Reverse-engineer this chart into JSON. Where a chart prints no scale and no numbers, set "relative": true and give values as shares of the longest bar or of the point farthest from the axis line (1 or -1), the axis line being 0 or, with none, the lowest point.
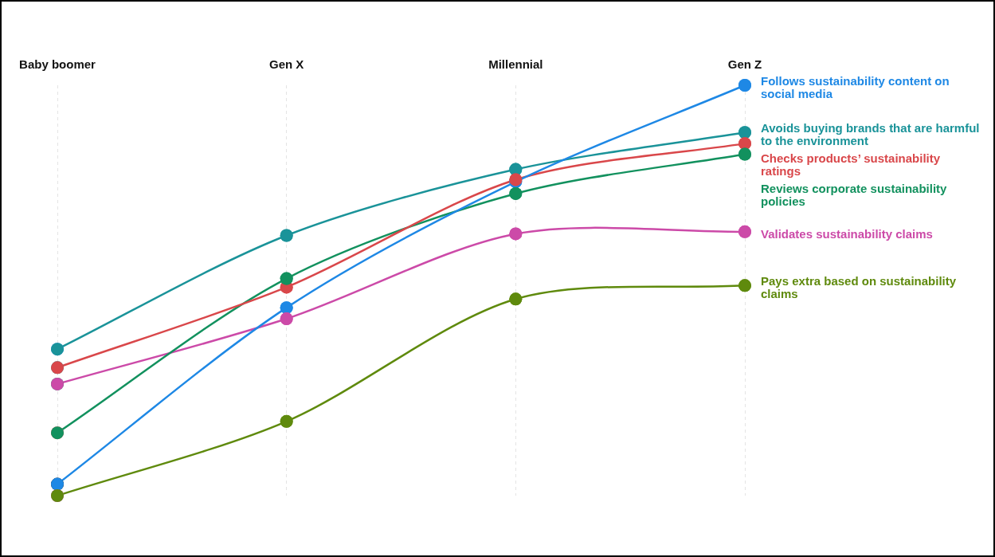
{
  "chart_data": {
    "type": "line",
    "relative": true,
    "categories": [
      "Baby boomer",
      "Gen X",
      "Millennial",
      "Gen Z"
    ],
    "series": [
      {
        "name": "Follows sustainability content on social media",
        "color": "#1e88e5",
        "values": [
          0.028,
          0.458,
          0.765,
          1
        ]
      },
      {
        "name": "Avoids buying brands that are harmful to the environment",
        "color": "#1a9399",
        "values": [
          0.357,
          0.634,
          0.795,
          0.885
        ]
      },
      {
        "name": "Checks products’ sustainability ratings",
        "color": "#d9474a",
        "values": [
          0.312,
          0.508,
          0.77,
          0.858
        ]
      },
      {
        "name": "Reviews corporate sustainability policies",
        "color": "#12915e",
        "values": [
          0.153,
          0.529,
          0.736,
          0.832
        ]
      },
      {
        "name": "Validates sustainability claims",
        "color": "#cc4aa8",
        "values": [
          0.272,
          0.431,
          0.638,
          0.643
        ]
      },
      {
        "name": "Pays extra based on sustainability claims",
        "color": "#5f8a0d",
        "values": [
          0,
          0.181,
          0.479,
          0.512
        ]
      }
    ],
    "grid": "x",
    "legend": false,
    "marker": "circle",
    "line_style": "solid"
  }
}
